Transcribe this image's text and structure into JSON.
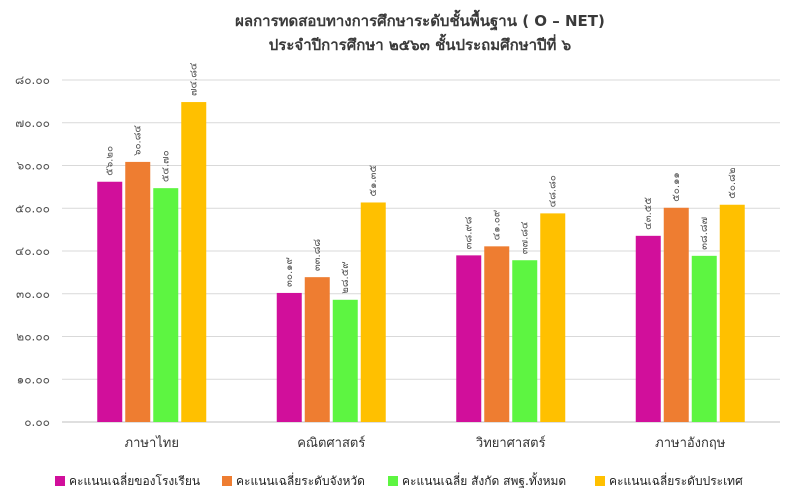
{
  "chart_data": {
    "type": "bar",
    "title": "ผลการทดสอบทางการศึกษาระดับชั้นพื้นฐาน ( O – NET)",
    "subtitle": "ประจำปีการศึกษา ๒๕๖๓  ชั้นประถมศึกษาปีที่ ๖",
    "categories": [
      "ภาษาไทย",
      "คณิตศาสตร์",
      "วิทยาศาสตร์",
      "ภาษาอังกฤษ"
    ],
    "y_ticks": [
      "๐.๐๐",
      "๑๐.๐๐",
      "๒๐.๐๐",
      "๓๐.๐๐",
      "๔๐.๐๐",
      "๕๐.๐๐",
      "๖๐.๐๐",
      "๗๐.๐๐",
      "๘๐.๐๐"
    ],
    "ylim": [
      0,
      80
    ],
    "grid": true,
    "legend_position": "bottom",
    "series": [
      {
        "name": "คะแนนเฉลี่ยของโรงเรียน",
        "color": "#d10f9b",
        "values": [
          56.2,
          30.19,
          38.98,
          43.55
        ],
        "labels": [
          "๕๖.๒๐",
          "๓๐.๑๙",
          "๓๘.๙๘",
          "๔๓.๕๕"
        ]
      },
      {
        "name": "คะแนนเฉลี่ยระดับจังหวัด",
        "color": "#ee7d31",
        "values": [
          60.84,
          33.88,
          41.09,
          50.11
        ],
        "labels": [
          "๖๐.๘๔",
          "๓๓.๘๘",
          "๔๑.๐๙",
          "๕๐.๑๑"
        ]
      },
      {
        "name": "คะแนนเฉลี่ย สังกัด สพฐ.ทั้งหมด",
        "color": "#5df541",
        "values": [
          54.7,
          28.59,
          37.84,
          38.87
        ],
        "labels": [
          "๕๔.๗๐",
          "๒๘.๕๙",
          "๓๗.๘๔",
          "๓๘.๘๗"
        ]
      },
      {
        "name": "คะแนนเฉลี่ยระดับประเทศ",
        "color": "#ffc000",
        "values": [
          74.84,
          51.35,
          48.8,
          50.82
        ],
        "labels": [
          "๗๔.๘๔",
          "๕๑.๓๕",
          "๔๘.๘๐",
          "๕๐.๘๒"
        ]
      }
    ]
  }
}
